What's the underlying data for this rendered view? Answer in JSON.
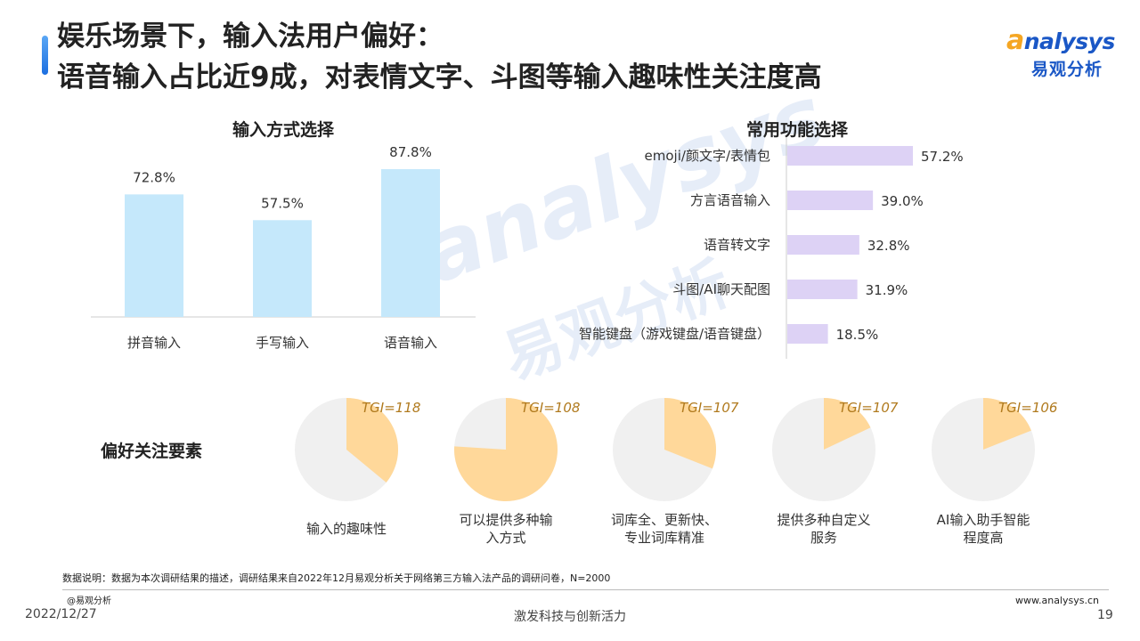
{
  "title": {
    "line1": "娱乐场景下，输入法用户偏好：",
    "line2": "语音输入占比近9成，对表情文字、斗图等输入趣味性关注度高"
  },
  "logo": {
    "text_en": "nalysys",
    "text_en_prefix": "a",
    "text_cn": "易观分析"
  },
  "watermark": {
    "text_en": "analysys",
    "text_cn": "易观分析"
  },
  "colors": {
    "bar_blue": "#c5e8fb",
    "bar_purple": "#ddd2f5",
    "pie_orange": "#ffd89a",
    "pie_gray": "#f0f0f0",
    "tgi_text": "#b07a1e",
    "accent": "#1c6fe0"
  },
  "chart_data": [
    {
      "type": "bar",
      "title": "输入方式选择",
      "categories": [
        "拼音输入",
        "手写输入",
        "语音输入"
      ],
      "values": [
        72.8,
        57.5,
        87.8
      ],
      "value_labels": [
        "72.8%",
        "57.5%",
        "87.8%"
      ],
      "ylim": [
        0,
        100
      ],
      "grid": false
    },
    {
      "type": "bar",
      "orientation": "horizontal",
      "title": "常用功能选择",
      "categories": [
        "emoji/颜文字/表情包",
        "方言语音输入",
        "语音转文字",
        "斗图/AI聊天配图",
        "智能键盘（游戏键盘/语音键盘）"
      ],
      "values": [
        57.2,
        39.0,
        32.8,
        31.9,
        18.5
      ],
      "value_labels": [
        "57.2%",
        "39.0%",
        "32.8%",
        "31.9%",
        "18.5%"
      ],
      "xlim": [
        0,
        100
      ],
      "grid": false
    },
    {
      "type": "pie",
      "title": "偏好关注要素",
      "items": [
        {
          "label_lines": [
            "输入的趣味性"
          ],
          "tgi": "TGI=118",
          "tgi_value": 118
        },
        {
          "label_lines": [
            "可以提供多种输",
            "入方式"
          ],
          "tgi": "TGI=108",
          "tgi_value": 108
        },
        {
          "label_lines": [
            "词库全、更新快、",
            "专业词库精准"
          ],
          "tgi": "TGI=107",
          "tgi_value": 107
        },
        {
          "label_lines": [
            "提供多种自定义",
            "服务"
          ],
          "tgi": "TGI=107",
          "tgi_value": 107
        },
        {
          "label_lines": [
            "AI输入助手智能",
            "程度高"
          ],
          "tgi": "TGI=106",
          "tgi_value": 106
        }
      ],
      "shares": [
        0.36,
        0.76,
        0.31,
        0.18,
        0.19
      ]
    }
  ],
  "footer": {
    "note": "数据说明：数据为本次调研结果的描述，调研结果来自2022年12月易观分析关于网络第三方输入法产品的调研问卷，N=2000",
    "brand": "@易观分析",
    "date": "2022/12/27",
    "slogan": "激发科技与创新活力",
    "url": "www.analysys.cn",
    "page": "19"
  }
}
